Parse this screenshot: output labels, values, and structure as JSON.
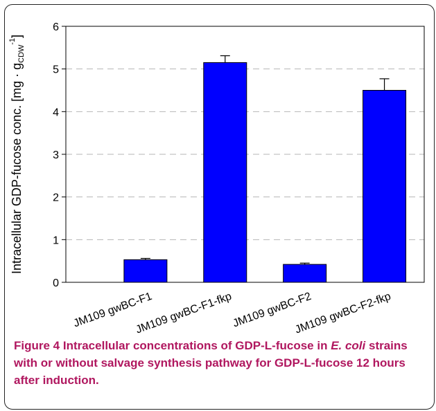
{
  "chart_data": {
    "type": "bar",
    "categories": [
      "JM109 gwBC-F1",
      "JM109 gwBC-F1-fkp",
      "JM109 gwBC-F2",
      "JM109 gwBC-F2-fkp"
    ],
    "values": [
      0.53,
      5.15,
      0.42,
      4.5
    ],
    "errors": [
      0.03,
      0.16,
      0.03,
      0.27
    ],
    "ylabel_main": "Intracellular GDP-fucose conc. [mg · g",
    "ylabel_sub": "CDW",
    "ylabel_sup": "-1",
    "ylabel_close": "]",
    "ylim": [
      0,
      6
    ],
    "yticks": [
      "0",
      "1",
      "2",
      "3",
      "4",
      "5",
      "6"
    ],
    "grid": "dashed horizontal",
    "bar_color": "#0000ff"
  },
  "caption": {
    "label": "Figure 4",
    "text_before": " Intracellular concentrations of GDP-L-fucose in ",
    "italic": "E. coli",
    "text_after": " strains with or without salvage synthesis pathway for GDP-L-fucose 12 hours after induction."
  },
  "colors": {
    "caption": "#b0175f",
    "frame": "#222222"
  }
}
